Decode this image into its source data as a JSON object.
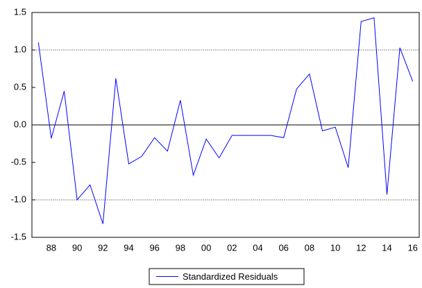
{
  "chart_data": {
    "type": "line",
    "categories": [
      null,
      "88",
      null,
      "90",
      null,
      "92",
      null,
      "94",
      null,
      "96",
      null,
      "98",
      null,
      "00",
      null,
      "02",
      null,
      "04",
      null,
      "06",
      null,
      "08",
      null,
      "10",
      null,
      "12",
      null,
      "14",
      null,
      "16"
    ],
    "series": [
      {
        "name": "Standardized Residuals",
        "color": "#0000ff",
        "values": [
          1.1,
          -0.18,
          0.45,
          -1.0,
          -0.8,
          -1.32,
          0.62,
          -0.52,
          -0.42,
          -0.17,
          -0.35,
          0.33,
          -0.67,
          -0.19,
          -0.44,
          -0.14,
          -0.14,
          -0.14,
          -0.14,
          -0.17,
          0.48,
          0.68,
          -0.08,
          -0.03,
          -0.57,
          1.38,
          1.43,
          -0.93,
          1.03,
          0.58
        ]
      }
    ],
    "ylim": [
      -1.5,
      1.5
    ],
    "yticks": [
      {
        "value": -1.5,
        "label": "-1.5"
      },
      {
        "value": -1.0,
        "label": "-1.0"
      },
      {
        "value": -0.5,
        "label": "-0.5"
      },
      {
        "value": 0,
        "label": "0.0"
      },
      {
        "value": 0.5,
        "label": "0.5"
      },
      {
        "value": 1.0,
        "label": "1.0"
      },
      {
        "value": 1.5,
        "label": "1.5"
      }
    ],
    "reference_lines": [
      -1,
      0,
      1
    ],
    "legend": "bottom"
  }
}
